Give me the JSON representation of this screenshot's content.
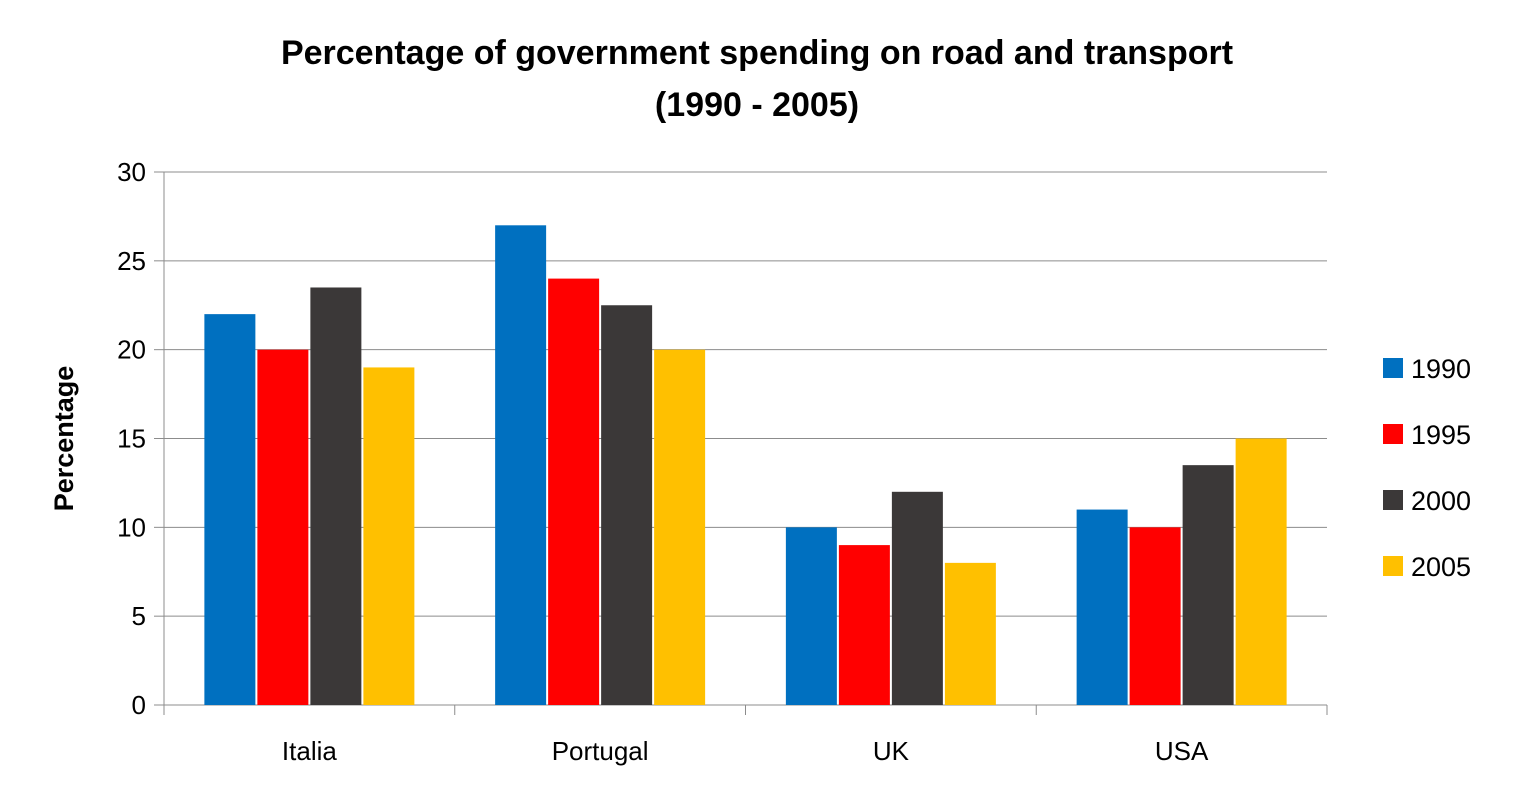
{
  "chart_data": {
    "type": "bar",
    "title_line1": "Percentage of government spending on road and transport",
    "title_line2": "(1990 - 2005)",
    "xlabel": "",
    "ylabel": "Percentage",
    "ylim": [
      0,
      30
    ],
    "yticks": [
      0,
      5,
      10,
      15,
      20,
      25,
      30
    ],
    "grid": true,
    "legend_position": "right",
    "categories": [
      "Italia",
      "Portugal",
      "UK",
      "USA"
    ],
    "series": [
      {
        "name": "1990",
        "color": "#0070C0",
        "values": [
          22,
          27,
          10,
          11
        ]
      },
      {
        "name": "1995",
        "color": "#FF0000",
        "values": [
          20,
          24,
          9,
          10
        ]
      },
      {
        "name": "2000",
        "color": "#3B3838",
        "values": [
          23.5,
          22.5,
          12,
          13.5
        ]
      },
      {
        "name": "2005",
        "color": "#FFC000",
        "values": [
          19,
          20,
          8,
          15
        ]
      }
    ]
  }
}
